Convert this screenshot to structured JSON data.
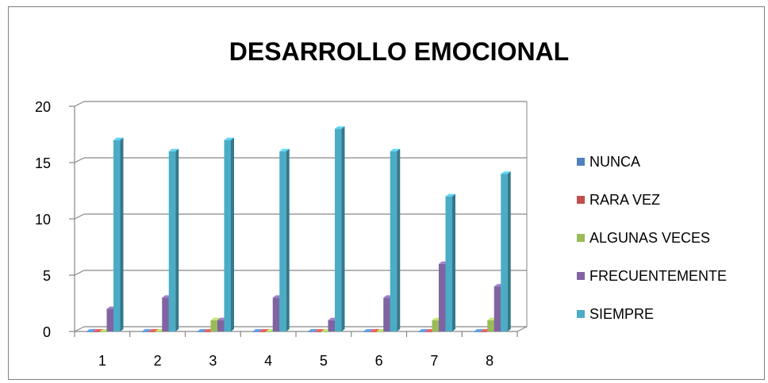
{
  "chart_data": {
    "type": "bar",
    "title": "DESARROLLO EMOCIONAL",
    "xlabel": "",
    "ylabel": "",
    "categories": [
      "1",
      "2",
      "3",
      "4",
      "5",
      "6",
      "7",
      "8"
    ],
    "ylim": [
      0,
      20
    ],
    "yticks": [
      "0",
      "5",
      "10",
      "15",
      "20"
    ],
    "grid": true,
    "legend_position": "right",
    "series": [
      {
        "name": "NUNCA",
        "color": "#4F81BD",
        "values": [
          0,
          0,
          0,
          0,
          0,
          0,
          0,
          0
        ]
      },
      {
        "name": "RARA VEZ",
        "color": "#C0504D",
        "values": [
          0,
          0,
          0,
          0,
          0,
          0,
          0,
          0
        ]
      },
      {
        "name": "ALGUNAS VECES",
        "color": "#9BBB59",
        "values": [
          0,
          0,
          1,
          0,
          0,
          0,
          1,
          1
        ]
      },
      {
        "name": "FRECUENTEMENTE",
        "color": "#8064A2",
        "values": [
          2,
          3,
          1,
          3,
          1,
          3,
          6,
          4
        ]
      },
      {
        "name": "SIEMPRE",
        "color": "#4BACC6",
        "values": [
          17,
          16,
          17,
          16,
          18,
          16,
          12,
          14
        ]
      }
    ]
  }
}
